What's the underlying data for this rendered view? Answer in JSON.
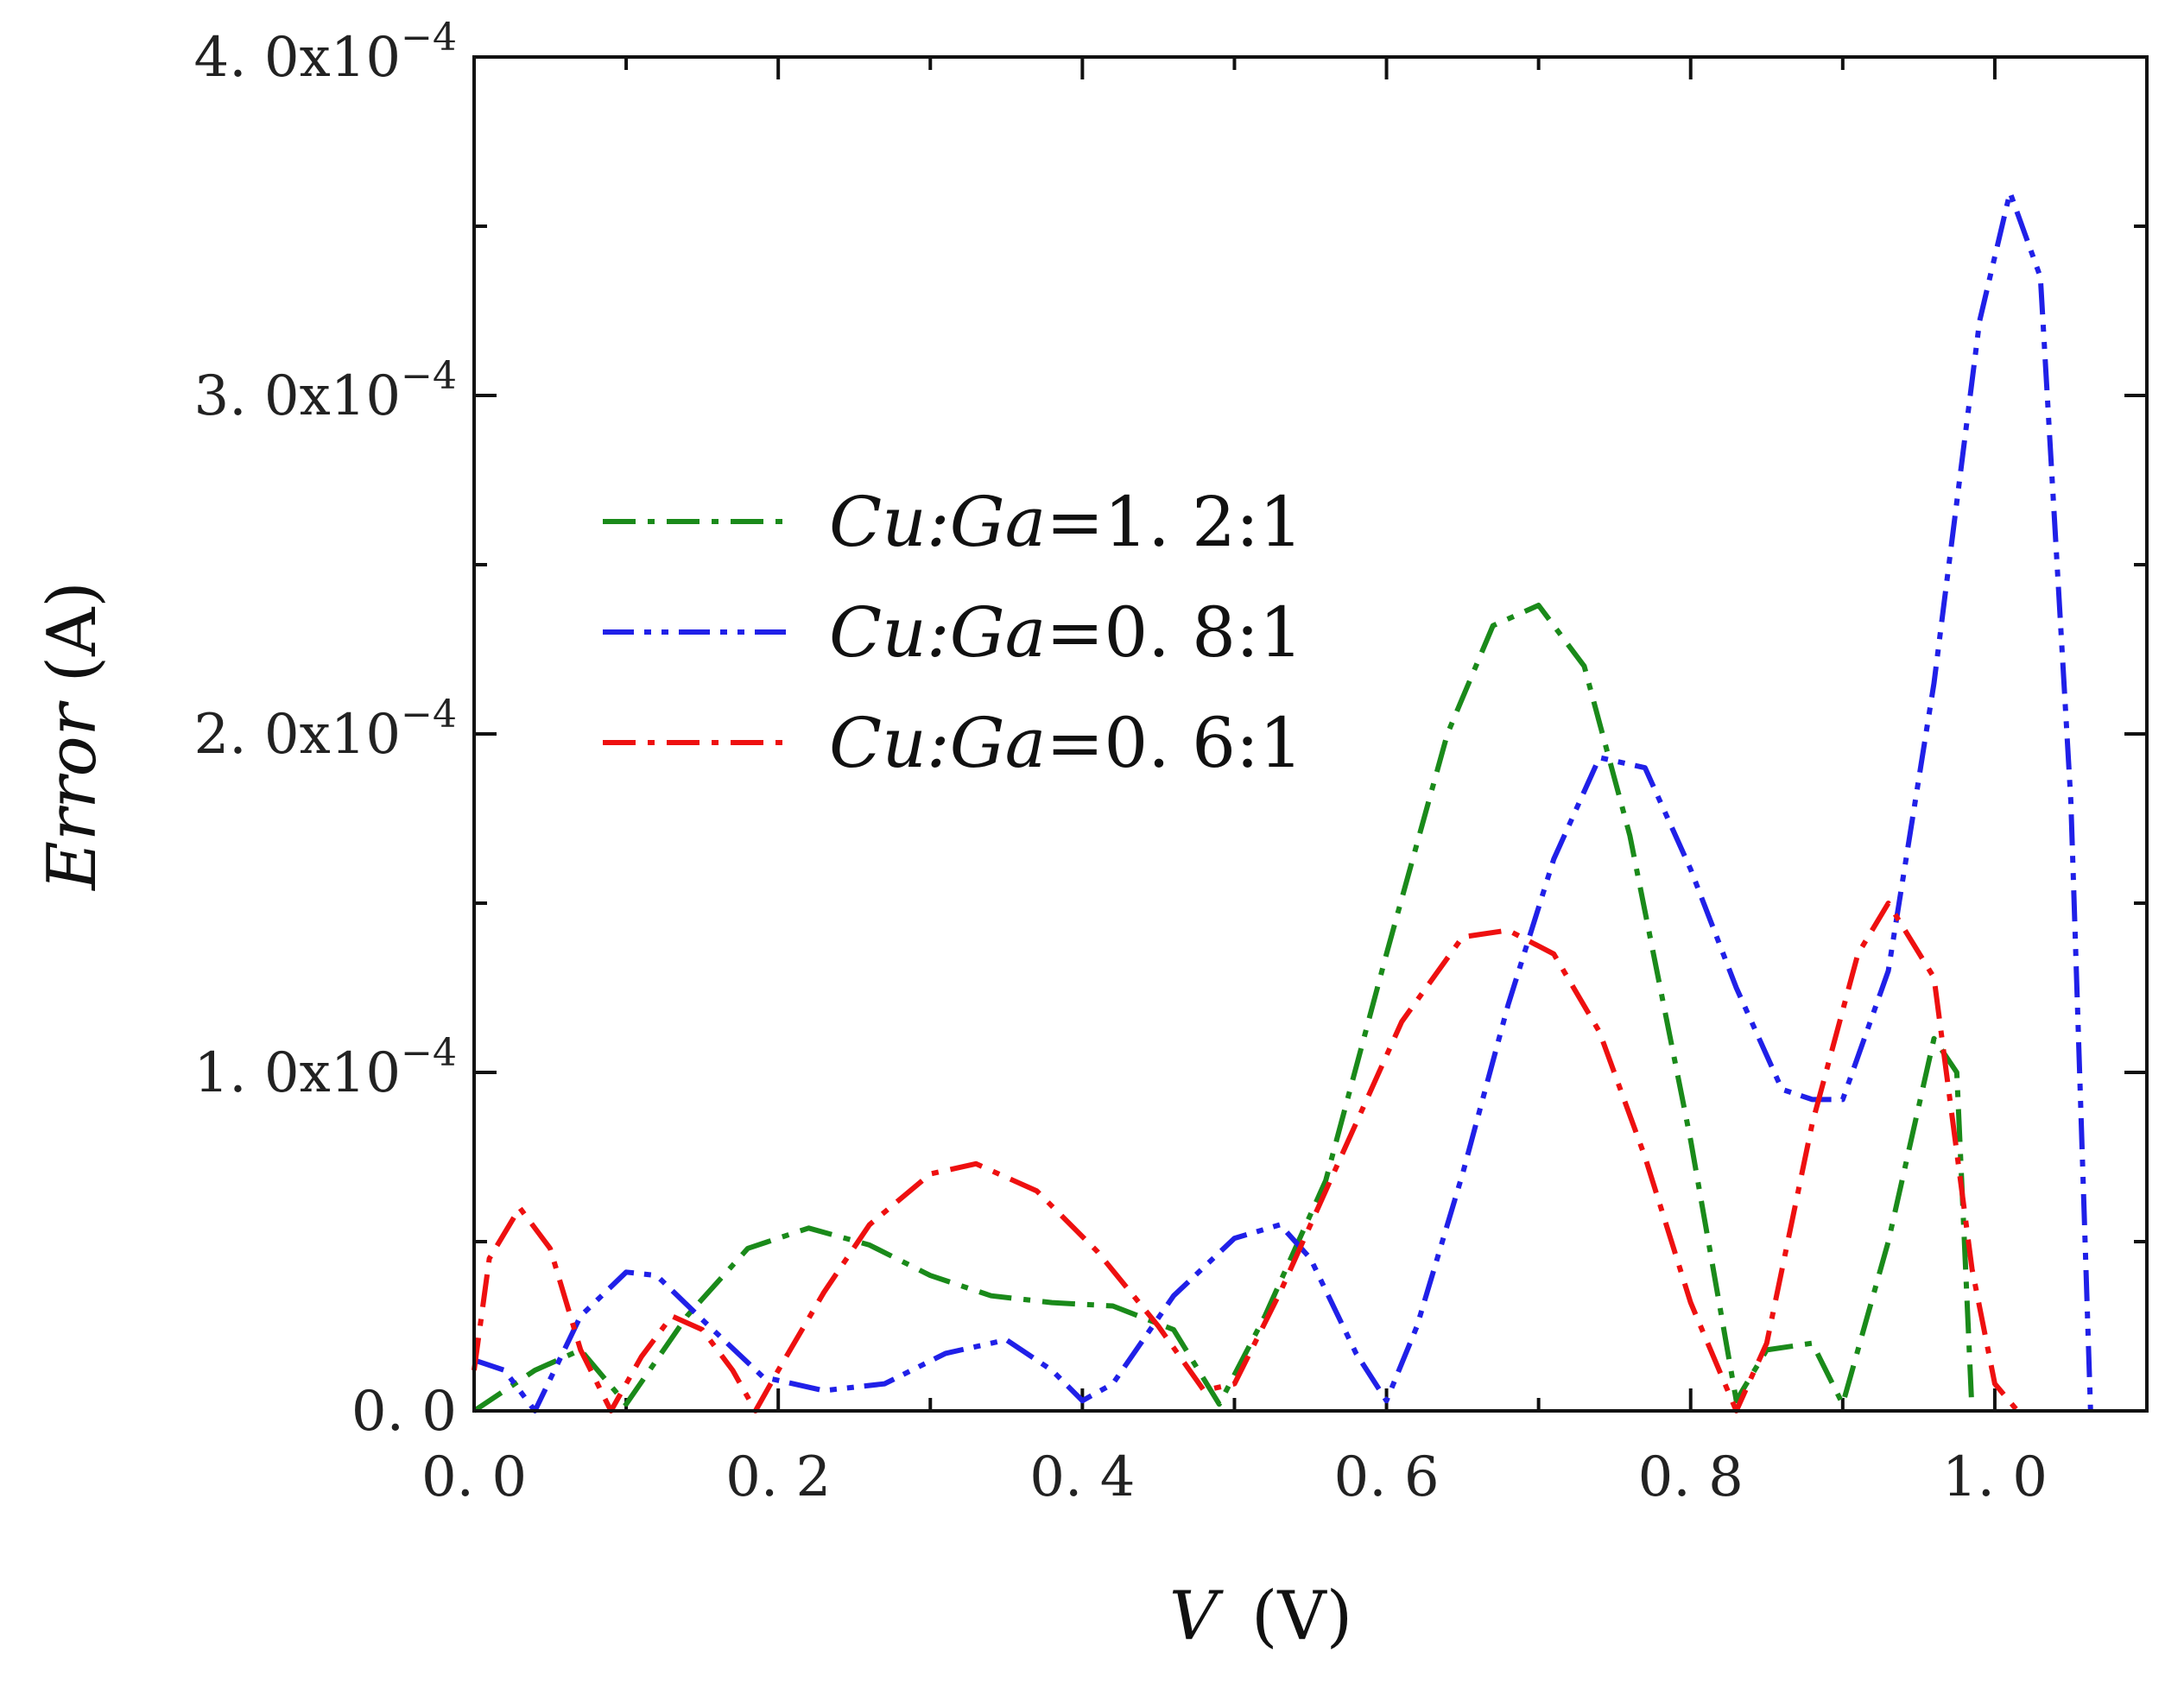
{
  "chart_data": {
    "type": "line",
    "title": "",
    "xlabel": {
      "italic": "V",
      "unit": "(V)"
    },
    "ylabel": {
      "italic": "Error",
      "unit": "(A)"
    },
    "xlim": [
      0.0,
      1.1
    ],
    "ylim": [
      0.0,
      0.0004
    ],
    "x_ticks": [
      0.0,
      0.2,
      0.4,
      0.6,
      0.8,
      1.0
    ],
    "x_tick_labels": [
      "0. 0",
      "0. 2",
      "0. 4",
      "0. 6",
      "0. 8",
      "1. 0"
    ],
    "y_ticks": [
      0.0,
      0.0001,
      0.0002,
      0.0003,
      0.0004
    ],
    "y_tick_labels": [
      {
        "mantissa": "0. 0",
        "exp": ""
      },
      {
        "mantissa": "1. 0x10",
        "exp": "−4"
      },
      {
        "mantissa": "2. 0x10",
        "exp": "−4"
      },
      {
        "mantissa": "3. 0x10",
        "exp": "−4"
      },
      {
        "mantissa": "4. 0x10",
        "exp": "−4"
      }
    ],
    "legend_position": "center-left",
    "series": [
      {
        "name": "Cu:Ga=1. 2:1",
        "legend_italic": "Cu:Ga",
        "legend_rest": "=1. 2:1",
        "color": "#1a8a1a",
        "style": "dash-dot",
        "x": [
          0.0,
          0.04,
          0.07,
          0.1,
          0.14,
          0.18,
          0.22,
          0.26,
          0.3,
          0.34,
          0.38,
          0.42,
          0.46,
          0.49,
          0.52,
          0.56,
          0.6,
          0.64,
          0.67,
          0.7,
          0.73,
          0.76,
          0.8,
          0.83,
          0.85,
          0.88,
          0.9,
          0.93,
          0.96,
          0.975,
          0.985
        ],
        "y": [
          0.0,
          1.2e-05,
          1.8e-05,
          2e-06,
          2.8e-05,
          4.8e-05,
          5.4e-05,
          4.9e-05,
          4e-05,
          3.4e-05,
          3.2e-05,
          3.1e-05,
          2.4e-05,
          2e-06,
          2.8e-05,
          6.8e-05,
          0.000135,
          0.0002,
          0.000232,
          0.000238,
          0.00022,
          0.00017,
          8e-05,
          3e-06,
          1.8e-05,
          2e-05,
          2e-06,
          5e-05,
          0.00011,
          0.0001,
          0.0
        ]
      },
      {
        "name": "Cu:Ga=0. 8:1",
        "legend_italic": "Cu:Ga",
        "legend_rest": "=0. 8:1",
        "color": "#2020e8",
        "style": "dash-dot-dot",
        "x": [
          0.0,
          0.02,
          0.04,
          0.07,
          0.1,
          0.12,
          0.15,
          0.19,
          0.23,
          0.27,
          0.31,
          0.35,
          0.38,
          0.4,
          0.42,
          0.46,
          0.5,
          0.53,
          0.55,
          0.58,
          0.6,
          0.62,
          0.65,
          0.68,
          0.71,
          0.74,
          0.77,
          0.8,
          0.83,
          0.86,
          0.88,
          0.9,
          0.93,
          0.96,
          0.99,
          1.01,
          1.03,
          1.05,
          1.063
        ],
        "y": [
          1.5e-05,
          1.2e-05,
          0.0,
          2.8e-05,
          4.1e-05,
          4e-05,
          2.7e-05,
          1e-05,
          6e-06,
          8e-06,
          1.7e-05,
          2.1e-05,
          1.2e-05,
          3e-06,
          8e-06,
          3.4e-05,
          5.1e-05,
          5.5e-05,
          4.5e-05,
          1.7e-05,
          3e-06,
          2.5e-05,
          7e-05,
          0.00012,
          0.000163,
          0.000193,
          0.00019,
          0.00016,
          0.000125,
          9.5e-05,
          9.2e-05,
          9.2e-05,
          0.00013,
          0.000215,
          0.000322,
          0.00036,
          0.000335,
          0.00018,
          0.0
        ]
      },
      {
        "name": "Cu:Ga=0. 6:1",
        "legend_italic": "Cu:Ga",
        "legend_rest": "=0. 6:1",
        "color": "#ee1010",
        "style": "dash-dot",
        "x": [
          0.0,
          0.01,
          0.03,
          0.05,
          0.07,
          0.09,
          0.11,
          0.13,
          0.15,
          0.17,
          0.185,
          0.2,
          0.23,
          0.26,
          0.3,
          0.33,
          0.37,
          0.41,
          0.45,
          0.48,
          0.5,
          0.53,
          0.57,
          0.61,
          0.65,
          0.68,
          0.71,
          0.74,
          0.77,
          0.8,
          0.83,
          0.85,
          0.88,
          0.91,
          0.93,
          0.96,
          0.985,
          1.0,
          1.015
        ],
        "y": [
          1.2e-05,
          4.5e-05,
          6e-05,
          4.8e-05,
          1.8e-05,
          0.0,
          1.6e-05,
          2.8e-05,
          2.4e-05,
          1.2e-05,
          0.0,
          1.2e-05,
          3.5e-05,
          5.5e-05,
          7e-05,
          7.3e-05,
          6.5e-05,
          4.7e-05,
          2.5e-05,
          6e-06,
          8e-06,
          3.5e-05,
          7.5e-05,
          0.000115,
          0.00014,
          0.000142,
          0.000135,
          0.000112,
          7.5e-05,
          3.2e-05,
          0.0,
          2e-05,
          8.5e-05,
          0.000135,
          0.00015,
          0.000128,
          4.2e-05,
          8e-06,
          0.0
        ]
      }
    ]
  }
}
